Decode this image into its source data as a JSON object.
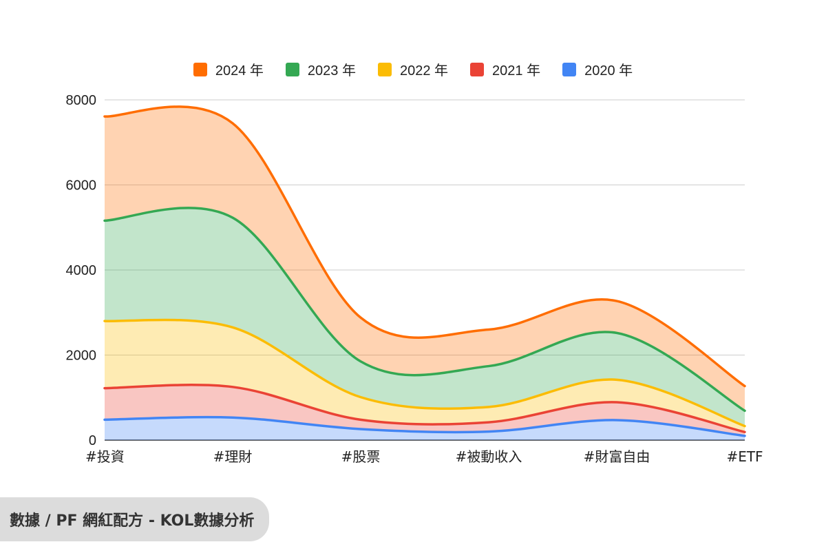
{
  "chart_data": {
    "type": "area",
    "stacked": true,
    "smooth": true,
    "categories": [
      "#投資",
      "#理財",
      "#股票",
      "#被動收入",
      "#財富自由",
      "#ETF"
    ],
    "series": [
      {
        "name": "2020 年",
        "color": "#4285f4",
        "values": [
          480,
          530,
          260,
          200,
          470,
          100
        ]
      },
      {
        "name": "2021 年",
        "color": "#ea4335",
        "values": [
          740,
          720,
          220,
          220,
          420,
          90
        ]
      },
      {
        "name": "2022 年",
        "color": "#fbbc04",
        "values": [
          1580,
          1400,
          530,
          360,
          530,
          140
        ]
      },
      {
        "name": "2023 年",
        "color": "#34a853",
        "values": [
          2360,
          2580,
          840,
          960,
          1100,
          360
        ]
      },
      {
        "name": "2024 年",
        "color": "#ff6d01",
        "values": [
          2450,
          2220,
          1030,
          860,
          750,
          580
        ]
      }
    ],
    "legend_order": [
      "2024 年",
      "2023 年",
      "2022 年",
      "2021 年",
      "2020 年"
    ],
    "legend_position": "top-center",
    "y_ticks": [
      0,
      2000,
      4000,
      6000,
      8000
    ],
    "ylim": [
      0,
      8000
    ],
    "grid": true
  },
  "source": {
    "label": "數據 / PF 網紅配方 - KOL數據分析"
  }
}
